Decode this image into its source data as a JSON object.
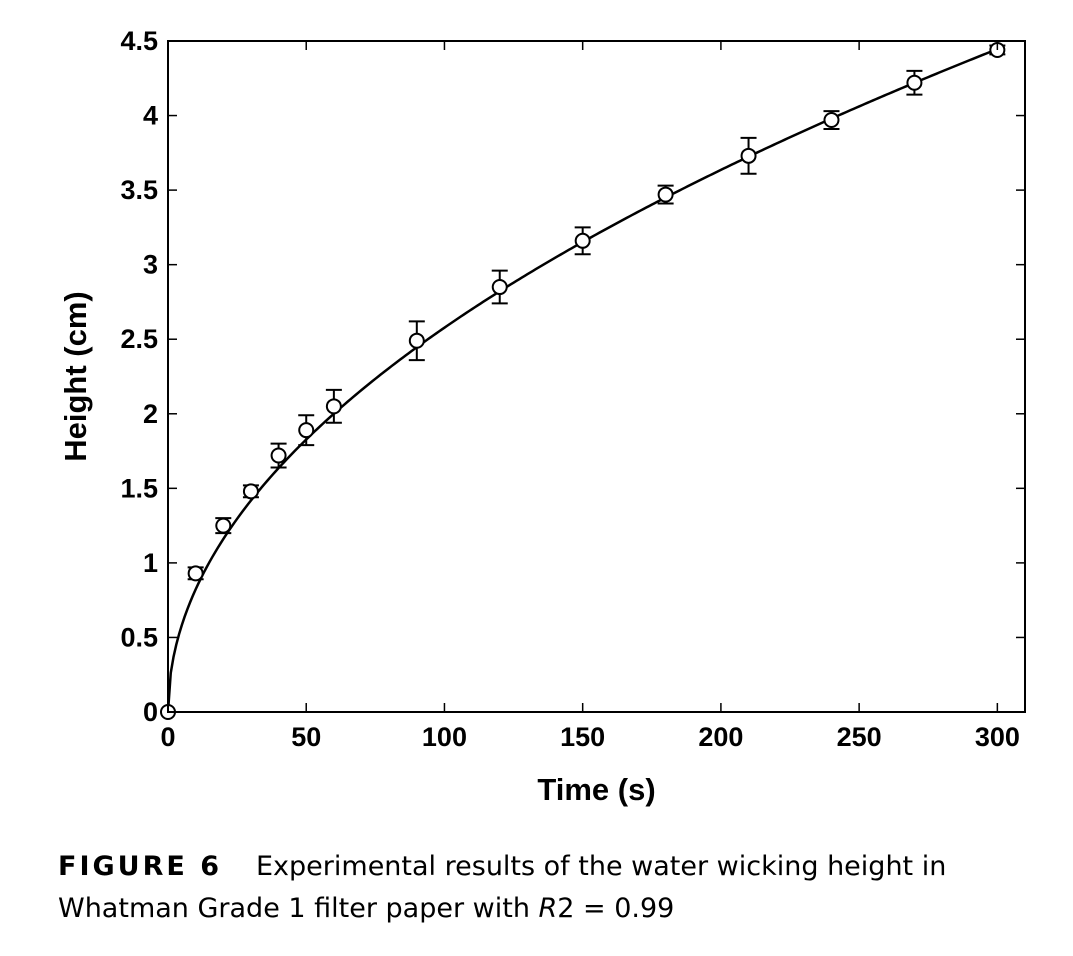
{
  "chart_data": {
    "type": "scatter",
    "xlabel": "Time (s)",
    "ylabel": "Height (cm)",
    "xlim": [
      0,
      310
    ],
    "ylim": [
      0,
      4.5
    ],
    "x_ticks": [
      "0",
      "50",
      "100",
      "150",
      "200",
      "250",
      "300"
    ],
    "y_ticks": [
      "0",
      "0.5",
      "1",
      "1.5",
      "2",
      "2.5",
      "3",
      "3.5",
      "4",
      "4.5"
    ],
    "grid": false,
    "legend": "none",
    "series": [
      {
        "marker": "open-circle",
        "x": [
          0,
          10,
          20,
          30,
          40,
          50,
          60,
          90,
          120,
          150,
          180,
          210,
          240,
          270,
          300
        ],
        "y": [
          0,
          0.93,
          1.25,
          1.48,
          1.72,
          1.89,
          2.05,
          2.49,
          2.85,
          3.16,
          3.47,
          3.73,
          3.97,
          4.22,
          4.44
        ],
        "error": [
          0,
          0.04,
          0.05,
          0.04,
          0.08,
          0.1,
          0.11,
          0.13,
          0.11,
          0.09,
          0.06,
          0.12,
          0.06,
          0.08,
          0.03
        ]
      }
    ],
    "fit_curve": {
      "type": "line",
      "model": "power",
      "a": 0.2623,
      "b": 0.4962,
      "x_range": [
        0,
        300
      ]
    }
  },
  "caption": {
    "label": "FIGURE 6",
    "text_before": "Experimental results of the water wicking height in Whatman Grade 1 filter paper with ",
    "r_symbol": "R",
    "text_after": "2 = 0.99"
  },
  "colors": {
    "line": "#000000",
    "background": "#ffffff"
  }
}
